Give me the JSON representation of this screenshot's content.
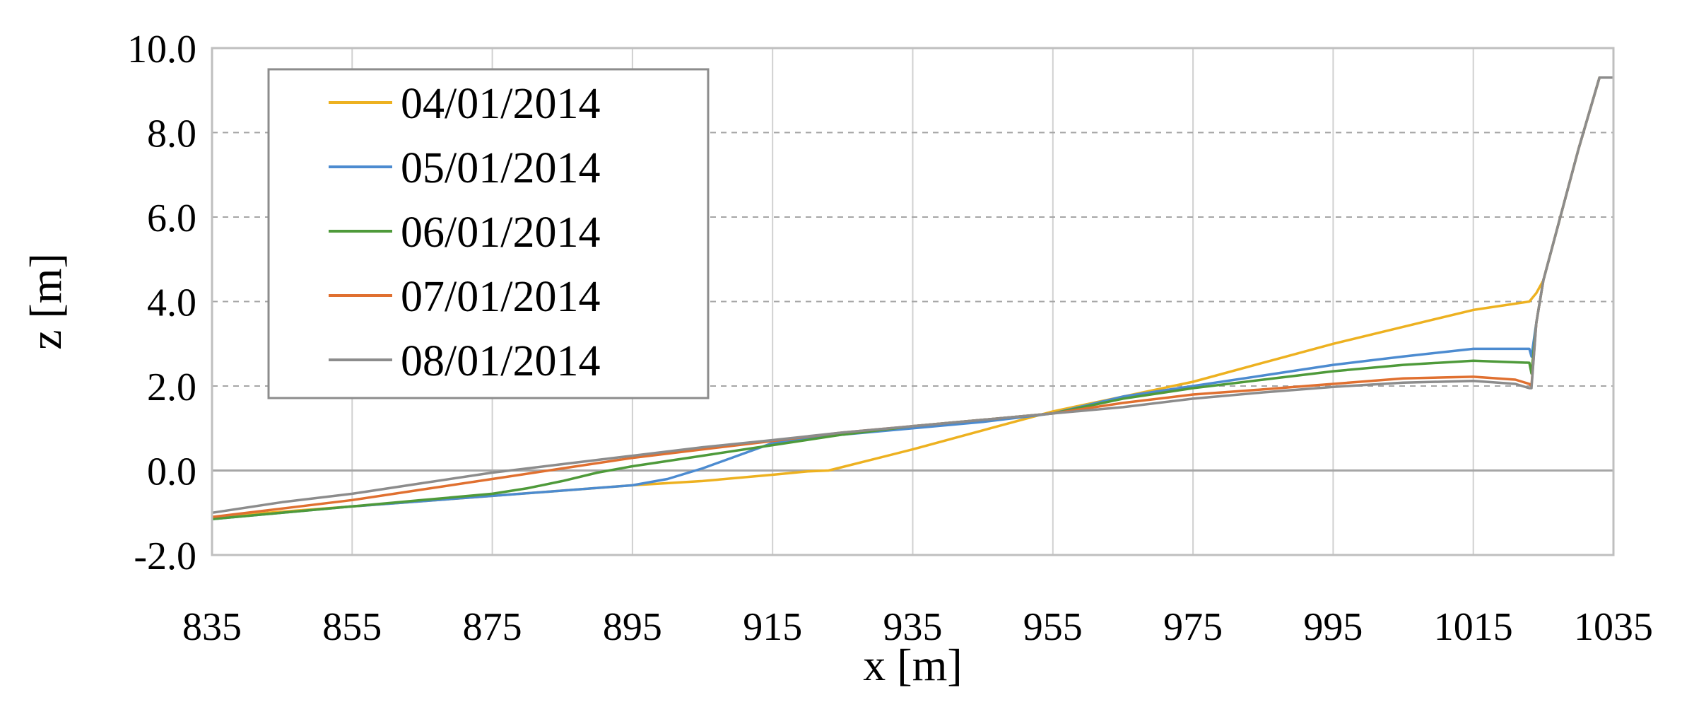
{
  "chart_data": {
    "type": "line",
    "title": "",
    "xlabel": "x [m]",
    "ylabel": "z [m]",
    "xlim": [
      835,
      1035
    ],
    "ylim": [
      -2.0,
      10.0
    ],
    "x_ticks": [
      "835",
      "855",
      "875",
      "895",
      "915",
      "935",
      "955",
      "975",
      "995",
      "1015",
      "1035"
    ],
    "y_ticks": [
      "-2.0",
      "0.0",
      "2.0",
      "4.0",
      "6.0",
      "8.0",
      "10.0"
    ],
    "x_tick_values": [
      835,
      855,
      875,
      895,
      915,
      935,
      955,
      975,
      995,
      1015,
      1035
    ],
    "y_tick_values": [
      -2,
      0,
      2,
      4,
      6,
      8,
      10
    ],
    "grid": {
      "vertical": "solid",
      "horizontal": "dashed"
    },
    "legend_position": "top-left",
    "series": [
      {
        "name": "04/01/2014",
        "color": "#EDB120",
        "x": [
          835,
          855,
          875,
          895,
          905,
          915,
          920,
          923,
          935,
          945,
          955,
          965,
          975,
          985,
          995,
          1005,
          1015,
          1023,
          1024,
          1025,
          1030,
          1033,
          1035
        ],
        "y": [
          -1.1,
          -0.85,
          -0.6,
          -0.35,
          -0.25,
          -0.1,
          -0.02,
          0.0,
          0.5,
          0.95,
          1.4,
          1.75,
          2.1,
          2.55,
          3.0,
          3.4,
          3.8,
          4.0,
          4.2,
          4.5,
          7.6,
          9.3,
          9.3
        ]
      },
      {
        "name": "05/01/2014",
        "color": "#4C8BD0",
        "x": [
          835,
          855,
          875,
          895,
          900,
          905,
          910,
          915,
          925,
          935,
          945,
          955,
          965,
          975,
          985,
          995,
          1005,
          1015,
          1023,
          1023.3,
          1024,
          1025,
          1030,
          1033,
          1035
        ],
        "y": [
          -1.15,
          -0.85,
          -0.6,
          -0.35,
          -0.2,
          0.05,
          0.35,
          0.65,
          0.85,
          1.0,
          1.15,
          1.35,
          1.75,
          2.0,
          2.25,
          2.5,
          2.7,
          2.88,
          2.88,
          2.7,
          3.5,
          4.5,
          7.6,
          9.3,
          9.3
        ]
      },
      {
        "name": "06/01/2014",
        "color": "#4E9A3A",
        "x": [
          835,
          855,
          865,
          875,
          880,
          885,
          890,
          895,
          905,
          915,
          925,
          935,
          945,
          955,
          965,
          975,
          985,
          995,
          1005,
          1015,
          1023,
          1023.3,
          1024,
          1025,
          1030,
          1033,
          1035
        ],
        "y": [
          -1.15,
          -0.85,
          -0.7,
          -0.55,
          -0.42,
          -0.25,
          -0.05,
          0.1,
          0.35,
          0.6,
          0.85,
          1.05,
          1.2,
          1.35,
          1.7,
          1.95,
          2.15,
          2.35,
          2.5,
          2.6,
          2.55,
          2.3,
          3.5,
          4.5,
          7.6,
          9.3,
          9.3
        ]
      },
      {
        "name": "07/01/2014",
        "color": "#E07030",
        "x": [
          835,
          845,
          855,
          865,
          875,
          885,
          895,
          905,
          915,
          925,
          935,
          945,
          955,
          965,
          975,
          985,
          995,
          1005,
          1015,
          1021,
          1023,
          1023.3,
          1024,
          1025,
          1030,
          1033,
          1035
        ],
        "y": [
          -1.1,
          -0.9,
          -0.7,
          -0.45,
          -0.2,
          0.05,
          0.3,
          0.5,
          0.7,
          0.9,
          1.05,
          1.2,
          1.35,
          1.6,
          1.8,
          1.92,
          2.05,
          2.18,
          2.22,
          2.15,
          2.05,
          2.0,
          3.5,
          4.5,
          7.6,
          9.3,
          9.3
        ]
      },
      {
        "name": "08/01/2014",
        "color": "#8C8C8C",
        "x": [
          835,
          845,
          855,
          865,
          875,
          885,
          895,
          905,
          915,
          925,
          935,
          945,
          955,
          965,
          975,
          985,
          995,
          1005,
          1015,
          1021,
          1023,
          1023.3,
          1024,
          1025,
          1030,
          1033,
          1035
        ],
        "y": [
          -1.0,
          -0.75,
          -0.55,
          -0.3,
          -0.05,
          0.15,
          0.35,
          0.55,
          0.72,
          0.9,
          1.05,
          1.2,
          1.35,
          1.5,
          1.7,
          1.85,
          1.98,
          2.08,
          2.12,
          2.05,
          1.95,
          1.95,
          3.5,
          4.5,
          7.6,
          9.3,
          9.3
        ]
      }
    ]
  }
}
